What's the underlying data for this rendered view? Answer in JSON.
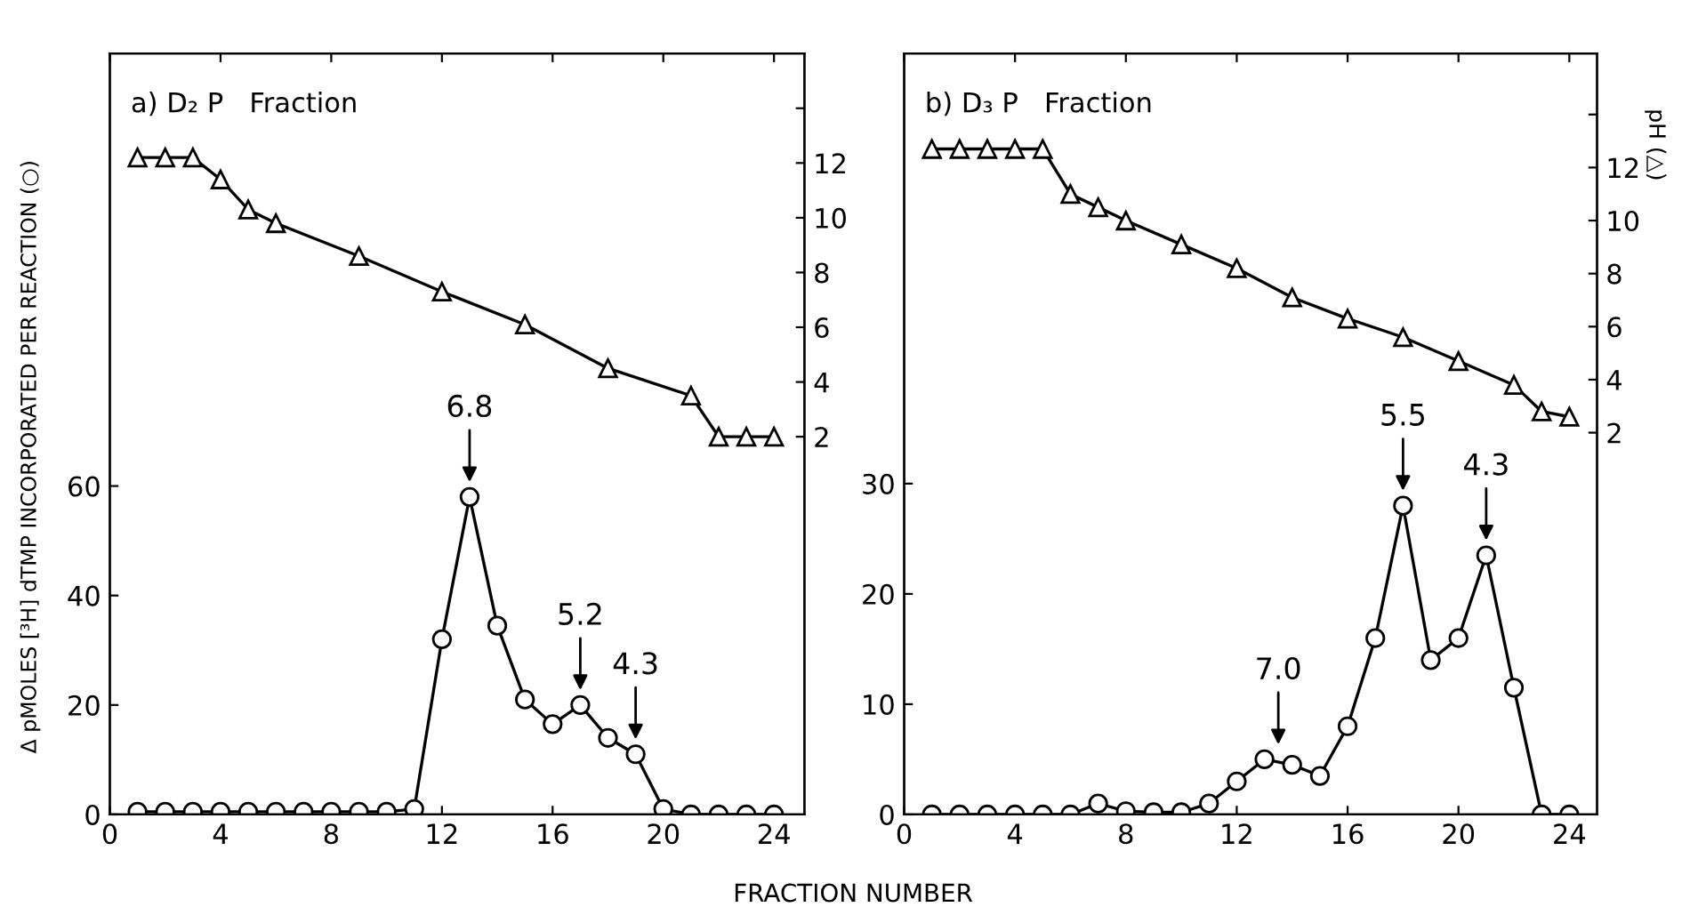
{
  "chart_data": [
    {
      "type": "line",
      "title": "a) D₂ P   Fraction",
      "xlabel": "FRACTION NUMBER",
      "ylabel": "Δ pMOLES [³H] dTMP INCORPORATED PER REACTION (○)",
      "x": [
        1,
        2,
        3,
        4,
        5,
        6,
        7,
        8,
        9,
        10,
        11,
        12,
        13,
        14,
        15,
        16,
        17,
        18,
        19,
        20,
        21,
        22,
        23,
        24
      ],
      "series": [
        {
          "color": "#000000",
          "marker": "circle",
          "values": [
            0.5,
            0.5,
            0.5,
            0.5,
            0.5,
            0.5,
            0.5,
            0.5,
            0.5,
            0.5,
            1,
            32,
            58,
            34.5,
            21,
            16.5,
            20,
            14,
            11,
            1,
            0,
            0,
            0,
            0
          ]
        },
        {
          "color": "#000000",
          "marker": "triangle",
          "axis": "y2",
          "x": [
            1,
            2,
            3,
            4,
            5,
            6,
            9,
            12,
            15,
            18,
            21,
            22,
            23,
            24
          ],
          "values": [
            12.2,
            12.2,
            12.2,
            11.4,
            10.3,
            9.8,
            8.6,
            7.3,
            6.1,
            4.5,
            3.5,
            2.0,
            2.0,
            2.0
          ]
        }
      ],
      "xlim": [
        0,
        25.1
      ],
      "xticks": [
        0,
        4,
        8,
        12,
        16,
        20,
        24
      ],
      "ylim": [
        0,
        139
      ],
      "yticks": [
        0,
        20,
        40,
        60
      ],
      "y2lim": [
        -11.8,
        16
      ],
      "y2ticks": [
        2,
        4,
        6,
        8,
        10,
        12,
        {
          "value": 14,
          "label": null
        }
      ],
      "annotations": [
        {
          "text": "6.8",
          "x": 13,
          "y": 58
        },
        {
          "text": "5.2",
          "x": 17,
          "y": 20
        },
        {
          "text": "4.3",
          "x": 19,
          "y": 11
        }
      ]
    },
    {
      "type": "line",
      "title": "b) D₃ P   Fraction",
      "y2label": "pH (△)",
      "x": [
        1,
        2,
        3,
        4,
        5,
        6,
        7,
        8,
        9,
        10,
        11,
        12,
        13,
        14,
        15,
        16,
        17,
        18,
        19,
        20,
        21,
        22,
        23,
        24
      ],
      "series": [
        {
          "color": "#000000",
          "marker": "circle",
          "values": [
            0,
            0,
            0,
            0,
            0,
            0,
            1,
            0.3,
            0.2,
            0.2,
            1,
            3,
            5,
            4.5,
            3.5,
            8,
            16,
            28,
            14,
            16,
            23.5,
            11.5,
            0,
            0
          ]
        },
        {
          "color": "#000000",
          "marker": "triangle",
          "axis": "y2",
          "x": [
            1,
            2,
            3,
            4,
            5,
            6,
            7,
            8,
            10,
            12,
            14,
            16,
            18,
            20,
            22,
            23,
            24
          ],
          "values": [
            12.7,
            12.7,
            12.7,
            12.7,
            12.7,
            11.0,
            10.5,
            10.0,
            9.1,
            8.2,
            7.1,
            6.3,
            5.6,
            4.7,
            3.8,
            2.8,
            2.6
          ]
        }
      ],
      "xlim": [
        0,
        25
      ],
      "xticks": [
        0,
        4,
        8,
        12,
        16,
        20,
        24
      ],
      "ylim": [
        0,
        69
      ],
      "yticks": [
        0,
        10,
        20,
        30
      ],
      "y2lim": [
        -12.4,
        16.3
      ],
      "y2ticks": [
        2,
        4,
        6,
        8,
        10,
        12,
        {
          "value": 14,
          "label": null
        }
      ],
      "annotations": [
        {
          "text": "7.0",
          "x": 13.5,
          "y": 5
        },
        {
          "text": "5.5",
          "x": 18,
          "y": 28
        },
        {
          "text": "4.3",
          "x": 21,
          "y": 23.5
        }
      ]
    }
  ]
}
